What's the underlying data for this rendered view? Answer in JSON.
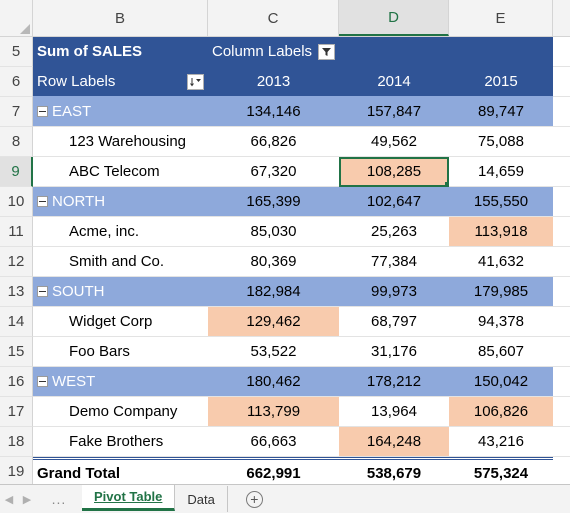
{
  "columns": [
    "B",
    "C",
    "D",
    "E"
  ],
  "active_column": "D",
  "active_row": "9",
  "pivot": {
    "header_row_num": "5",
    "sum_label": "Sum of SALES",
    "column_labels": "Column Labels",
    "years_row_num": "6",
    "row_labels": "Row Labels",
    "years": [
      "2013",
      "2014",
      "2015"
    ],
    "filter_icon": "filter-dropdown-icon",
    "sort_icon": "sort-dropdown-icon"
  },
  "groups": [
    {
      "row_num": "7",
      "name": "EAST",
      "values": [
        "134,146",
        "157,847",
        "89,747"
      ],
      "items": [
        {
          "row_num": "8",
          "name": "123 Warehousing",
          "values": [
            "66,826",
            "49,562",
            "75,088"
          ]
        },
        {
          "row_num": "9",
          "name": "ABC Telecom",
          "values": [
            "67,320",
            "108,285",
            "14,659"
          ]
        }
      ]
    },
    {
      "row_num": "10",
      "name": "NORTH",
      "values": [
        "165,399",
        "102,647",
        "155,550"
      ],
      "items": [
        {
          "row_num": "11",
          "name": "Acme, inc.",
          "values": [
            "85,030",
            "25,263",
            "113,918"
          ]
        },
        {
          "row_num": "12",
          "name": "Smith and Co.",
          "values": [
            "80,369",
            "77,384",
            "41,632"
          ]
        }
      ]
    },
    {
      "row_num": "13",
      "name": "SOUTH",
      "values": [
        "182,984",
        "99,973",
        "179,985"
      ],
      "items": [
        {
          "row_num": "14",
          "name": "Widget Corp",
          "values": [
            "129,462",
            "68,797",
            "94,378"
          ]
        },
        {
          "row_num": "15",
          "name": "Foo Bars",
          "values": [
            "53,522",
            "31,176",
            "85,607"
          ]
        }
      ]
    },
    {
      "row_num": "16",
      "name": "WEST",
      "values": [
        "180,462",
        "178,212",
        "150,042"
      ],
      "items": [
        {
          "row_num": "17",
          "name": "Demo Company",
          "values": [
            "113,799",
            "13,964",
            "106,826"
          ]
        },
        {
          "row_num": "18",
          "name": "Fake Brothers",
          "values": [
            "66,663",
            "164,248",
            "43,216"
          ]
        }
      ]
    }
  ],
  "grand_total": {
    "row_num": "19",
    "label": "Grand Total",
    "values": [
      "662,991",
      "538,679",
      "575,324"
    ]
  },
  "highlight_color": "#f8cbad",
  "header_color": "#305496",
  "group_color": "#8ea9db",
  "sheet_tabs": {
    "nav_prev": "◀",
    "nav_next": "▶",
    "dots": "...",
    "tabs": [
      "Pivot Table",
      "Data"
    ],
    "active": "Pivot Table",
    "add_sheet": "+"
  }
}
